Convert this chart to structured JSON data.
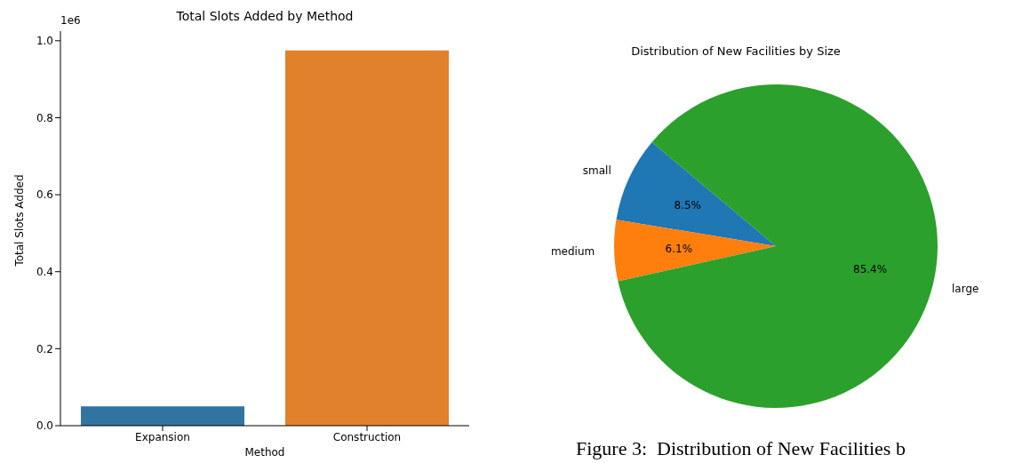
{
  "chart_data": [
    {
      "type": "bar",
      "title": "Total Slots Added by Method",
      "xlabel": "Method",
      "ylabel": "Total Slots Added",
      "categories": [
        "Expansion",
        "Construction"
      ],
      "values": [
        0.05,
        0.975
      ],
      "colors": [
        "#3274a1",
        "#e1812c"
      ],
      "ylim": [
        0,
        1.025
      ],
      "yticks": [
        {
          "value": 0,
          "label": "0.0"
        },
        0.2,
        0.4,
        0.6,
        0.8,
        {
          "value": 1,
          "label": "1.0"
        }
      ],
      "annotations": [
        "1e6"
      ]
    },
    {
      "type": "pie",
      "title": "Distribution of New Facilities by Size",
      "categories": [
        "small",
        "medium",
        "large"
      ],
      "values": [
        8.5,
        6.1,
        85.4
      ],
      "colors": [
        "#1f77b4",
        "#ff7f0e",
        "#2ca02c"
      ],
      "value_labels": [
        "8.5%",
        "6.1%",
        "85.4%"
      ],
      "annotations": [
        "Figure 3:  Distribution of New Facilities b"
      ]
    }
  ]
}
